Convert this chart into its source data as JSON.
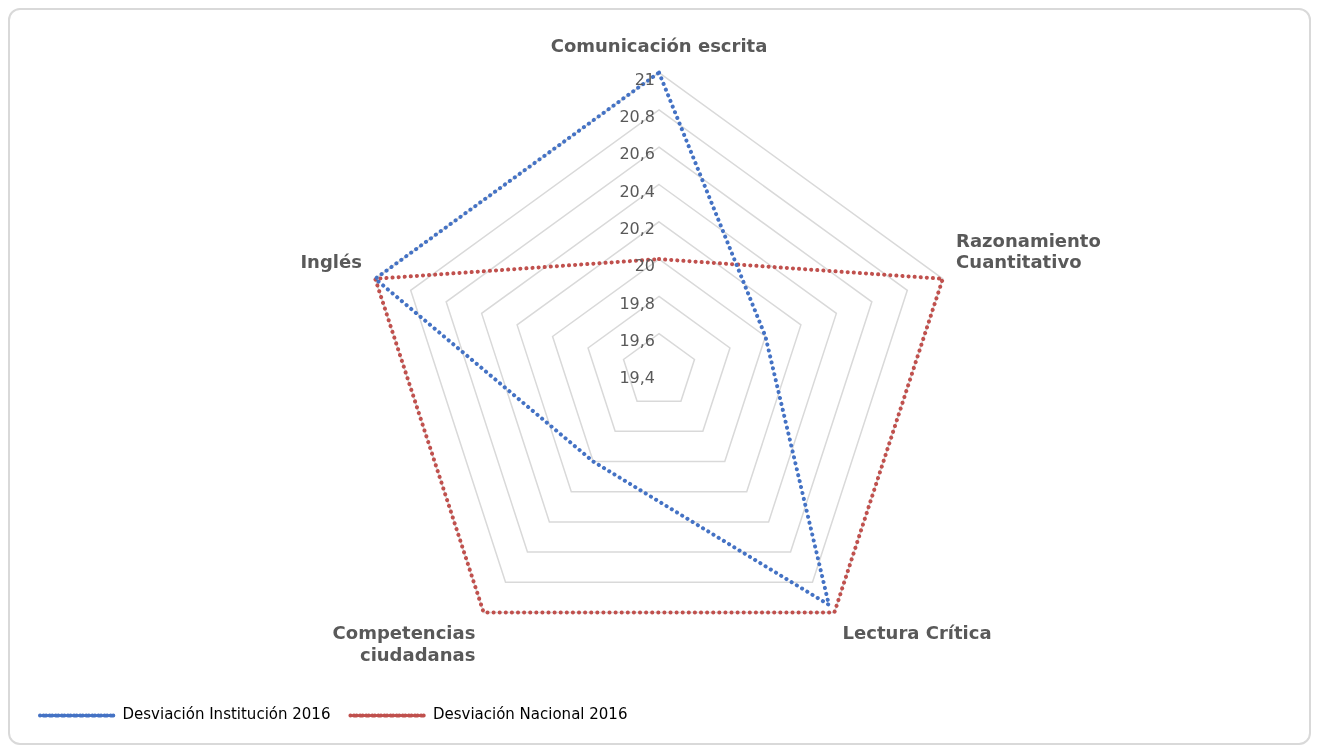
{
  "chart_data": {
    "type": "radar",
    "categories": [
      "Comunicación escrita",
      "Razonamiento Cuantitativo",
      "Lectura Crítica",
      "Competencias ciudadanas",
      "Inglés"
    ],
    "series": [
      {
        "name": "Desviación Institución 2016",
        "color": "#4472c4",
        "values": [
          21,
          20.0,
          20.95,
          20.0,
          21
        ]
      },
      {
        "name": "Desviación Nacional 2016",
        "color": "#c0504d",
        "values": [
          20,
          21,
          21,
          21,
          21
        ]
      }
    ],
    "ylim": [
      19.4,
      21
    ],
    "yticks": [
      {
        "value": 19.4,
        "label": "19,4"
      },
      {
        "value": 19.6,
        "label": "19,6"
      },
      {
        "value": 19.8,
        "label": "19,8"
      },
      {
        "value": 20,
        "label": "20"
      },
      {
        "value": 20.2,
        "label": "20,2"
      },
      {
        "value": 20.4,
        "label": "20,4"
      },
      {
        "value": 20.6,
        "label": "20,6"
      },
      {
        "value": 20.8,
        "label": "20,8"
      },
      {
        "value": 21,
        "label": "21"
      }
    ],
    "grid": true,
    "legend": "bottom left",
    "line_style": "dotted",
    "marker": "none"
  }
}
